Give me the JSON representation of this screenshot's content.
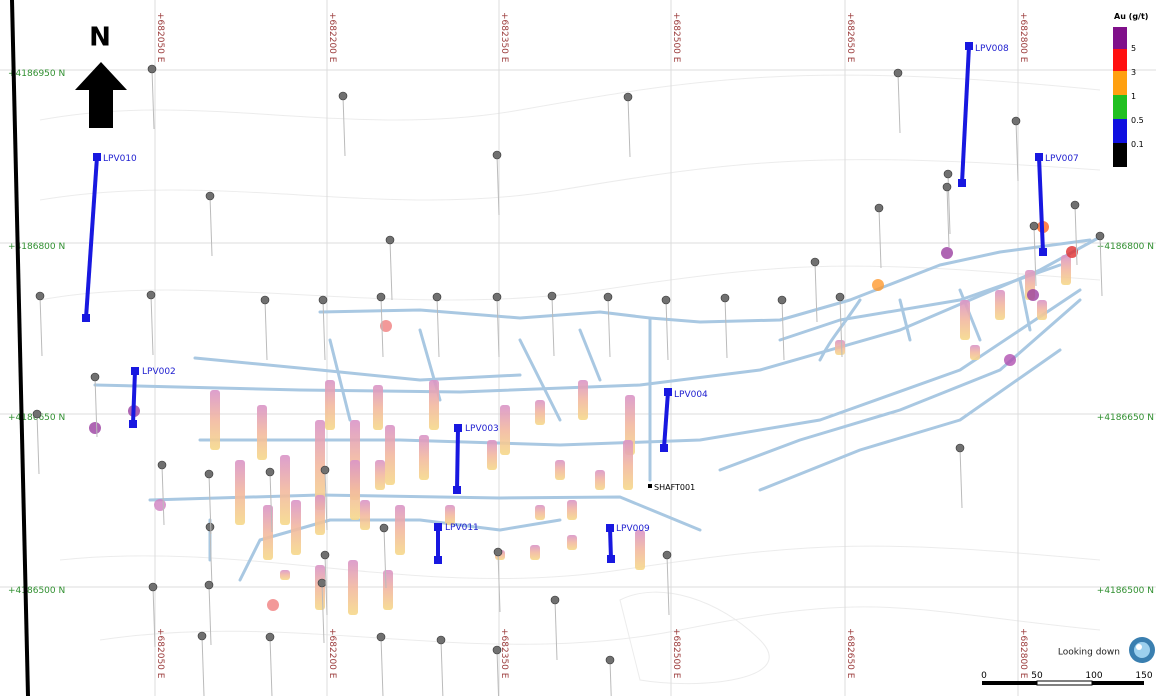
{
  "north": "N",
  "grid": {
    "easting": [
      "+682050 E",
      "+682200 E",
      "+682350 E",
      "+682500 E",
      "+682650 E",
      "+682800 E"
    ],
    "northing_left": [
      "+4186950 N",
      "+4186800 N",
      "+4186650 N",
      "+4186500 N"
    ],
    "northing_right": [
      "+4186800 N",
      "+4186650 N",
      "+4186500 N"
    ]
  },
  "holes": [
    "LPV010",
    "LPV002",
    "LPV003",
    "LPV004",
    "LPV011",
    "LPV009",
    "LPV008",
    "LPV007"
  ],
  "shaft": "SHAFT001",
  "legend": {
    "title": "Au (g/t)",
    "labels": [
      "5",
      "3",
      "1",
      "0.5",
      "0.1"
    ]
  },
  "view": "Looking down",
  "scale": [
    "0",
    "50",
    "100",
    "150"
  ]
}
